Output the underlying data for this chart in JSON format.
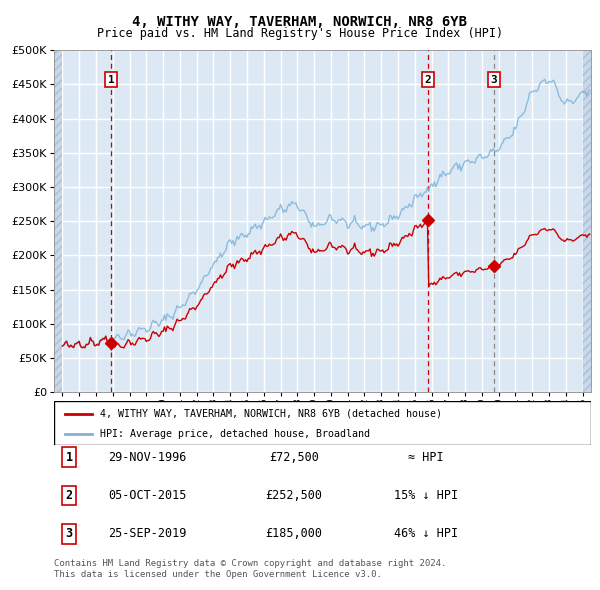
{
  "title_line1": "4, WITHY WAY, TAVERHAM, NORWICH, NR8 6YB",
  "title_line2": "Price paid vs. HM Land Registry's House Price Index (HPI)",
  "background_color": "#dce9f5",
  "plot_bg_color": "#dce9f5",
  "grid_color": "#ffffff",
  "hpi_color": "#7fb3d8",
  "price_color": "#cc0000",
  "sale_marker_color": "#cc0000",
  "vline1_color": "#cc0000",
  "vline2_color": "#cc0000",
  "vline3_color": "#888888",
  "ylim": [
    0,
    500000
  ],
  "yticks": [
    0,
    50000,
    100000,
    150000,
    200000,
    250000,
    300000,
    350000,
    400000,
    450000,
    500000
  ],
  "xlim_start": 1993.5,
  "xlim_end": 2025.5,
  "sale1_year": 1996.916,
  "sale1_price": 72500,
  "sale2_year": 2015.77,
  "sale2_price": 252500,
  "sale3_year": 2019.73,
  "sale3_price": 185000,
  "sale1_date": "29-NOV-1996",
  "sale1_text": "£72,500",
  "sale1_rel": "≈ HPI",
  "sale2_date": "05-OCT-2015",
  "sale2_text": "£252,500",
  "sale2_rel": "15% ↓ HPI",
  "sale3_date": "25-SEP-2019",
  "sale3_text": "£185,000",
  "sale3_rel": "46% ↓ HPI",
  "legend_line1": "4, WITHY WAY, TAVERHAM, NORWICH, NR8 6YB (detached house)",
  "legend_line2": "HPI: Average price, detached house, Broadland",
  "footer_line1": "Contains HM Land Registry data © Crown copyright and database right 2024.",
  "footer_line2": "This data is licensed under the Open Government Licence v3.0."
}
